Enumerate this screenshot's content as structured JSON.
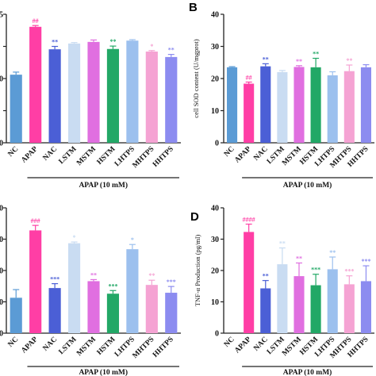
{
  "chart_data": [
    {
      "panel": "",
      "type": "bar",
      "categories": [
        "NC",
        "APAP",
        "NAC",
        "LSTM",
        "MSTM",
        "HSTM",
        "LHTPS",
        "MHTPS",
        "HHTPS"
      ],
      "values": [
        21.2,
        36.1,
        29.1,
        30.9,
        31.4,
        29.2,
        31.8,
        28.4,
        26.7
      ],
      "errors": [
        0.8,
        0.4,
        0.9,
        0.3,
        0.6,
        0.9,
        0.3,
        0.3,
        0.8
      ],
      "significance": [
        "",
        "##",
        "**",
        "",
        "",
        "**",
        "",
        "*",
        "**"
      ],
      "colors": [
        "#5b9bd5",
        "#ff3ea5",
        "#4b5fd6",
        "#c9dcf2",
        "#e06fe0",
        "#22a866",
        "#9cc0ee",
        "#f5a3d3",
        "#8c8cf0"
      ],
      "ylabel": "",
      "xgroup": "APAP (10 mM)",
      "ylim": [
        0,
        40
      ],
      "yticks_visible": [
        "0",
        "",
        "0",
        "",
        "5"
      ]
    },
    {
      "panel": "B",
      "type": "bar",
      "categories": [
        "NC",
        "APAP",
        "NAC",
        "LSTM",
        "MSTM",
        "HSTM",
        "LHTPS",
        "MHTPS",
        "HHTPS"
      ],
      "values": [
        23.5,
        18.4,
        23.8,
        22.0,
        23.6,
        23.5,
        21.0,
        22.3,
        23.5
      ],
      "errors": [
        0.2,
        0.5,
        0.8,
        0.5,
        0.4,
        2.8,
        1.1,
        1.9,
        0.8
      ],
      "significance": [
        "",
        "##",
        "**",
        "",
        "**",
        "**",
        "",
        "**",
        ""
      ],
      "colors": [
        "#5b9bd5",
        "#ff3ea5",
        "#4b5fd6",
        "#c9dcf2",
        "#e06fe0",
        "#22a866",
        "#9cc0ee",
        "#f5a3d3",
        "#8c8cf0"
      ],
      "ylabel": "cell SOD content (U/mgprot)",
      "xgroup": "APAP (10 mM)",
      "ylim": [
        0,
        40
      ],
      "yticks": [
        0,
        10,
        20,
        30,
        40
      ]
    },
    {
      "panel": "",
      "type": "bar",
      "categories": [
        "NC",
        "APAP",
        "NAC",
        "LSTM",
        "MSTM",
        "HSTM",
        "LHTPS",
        "MHTPS",
        "HHTPS"
      ],
      "values": [
        11.3,
        32.8,
        14.4,
        28.7,
        16.6,
        12.6,
        26.8,
        15.4,
        12.9
      ],
      "errors": [
        2.6,
        1.6,
        1.4,
        0.4,
        0.5,
        1.0,
        1.5,
        1.5,
        2.0
      ],
      "significance": [
        "",
        "###",
        "***",
        "*",
        "**",
        "***",
        "*",
        "**",
        "***"
      ],
      "colors": [
        "#5b9bd5",
        "#ff3ea5",
        "#4b5fd6",
        "#c9dcf2",
        "#e06fe0",
        "#22a866",
        "#9cc0ee",
        "#f5a3d3",
        "#8c8cf0"
      ],
      "ylabel": "",
      "xgroup": "APAP (10 mM)",
      "ylim": [
        0,
        40
      ],
      "yticks_visible": [
        "0",
        "0",
        "0",
        "0",
        "0"
      ]
    },
    {
      "panel": "D",
      "type": "bar",
      "categories": [
        "NC",
        "APAP",
        "NAC",
        "LSTM",
        "MSTM",
        "HSTM",
        "LHTPS",
        "MHTPS",
        "HHTPS"
      ],
      "values": [
        0,
        32.3,
        14.3,
        22.0,
        18.2,
        15.3,
        20.4,
        15.6,
        16.6
      ],
      "errors": [
        0,
        2.5,
        2.5,
        5.2,
        4.2,
        3.5,
        3.9,
        2.7,
        4.9
      ],
      "significance": [
        "",
        "####",
        "**",
        "**",
        "**",
        "***",
        "**",
        "***",
        "***"
      ],
      "colors": [
        "#5b9bd5",
        "#ff3ea5",
        "#4b5fd6",
        "#c9dcf2",
        "#e06fe0",
        "#22a866",
        "#9cc0ee",
        "#f5a3d3",
        "#8c8cf0"
      ],
      "ylabel": "TNF-α Production (pg/ml)",
      "xgroup": "APAP (10 mM)",
      "ylim": [
        0,
        40
      ],
      "yticks": [
        0,
        10,
        20,
        30,
        40
      ]
    }
  ]
}
